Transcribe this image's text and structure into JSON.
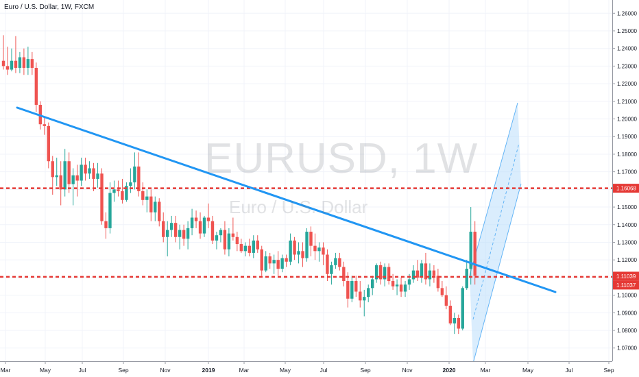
{
  "header": {
    "title": "Euro / U.S. Dollar, 1W, FXCM"
  },
  "watermark": {
    "symbol": "EURUSD, 1W",
    "name": "Euro / U.S. Dollar"
  },
  "colors": {
    "up": "#26a69a",
    "down": "#ef5350",
    "trendline": "#2196f3",
    "level": "#e53935",
    "channel_fill": "#bbdefb",
    "grid": "#f0f3fa",
    "axis_text": "#131722"
  },
  "chart_data": {
    "type": "candlestick",
    "symbol": "EURUSD",
    "timeframe": "1W",
    "source": "FXCM",
    "x_ticks": [
      "Mar",
      "May",
      "Jul",
      "Sep",
      "Nov",
      "2019",
      "Mar",
      "May",
      "Jul",
      "Sep",
      "Nov",
      "2020",
      "Mar",
      "May",
      "Jul",
      "Sep"
    ],
    "y_ticks": [
      "1.26000",
      "1.25000",
      "1.24000",
      "1.23000",
      "1.22000",
      "1.21000",
      "1.20000",
      "1.19000",
      "1.18000",
      "1.17000",
      "1.16000",
      "1.15000",
      "1.14000",
      "1.13000",
      "1.12000",
      "1.11000",
      "1.10000",
      "1.09000",
      "1.08000",
      "1.07000"
    ],
    "ylim": [
      1.0625,
      1.2675
    ],
    "price_labels": [
      "1.16068",
      "1.11039",
      "1.11037"
    ],
    "horizontal_levels": [
      1.16068,
      1.11039
    ],
    "candles": [
      {
        "o": 1.233,
        "h": 1.2475,
        "l": 1.228,
        "c": 1.23
      },
      {
        "o": 1.23,
        "h": 1.241,
        "l": 1.225,
        "c": 1.228
      },
      {
        "o": 1.228,
        "h": 1.24,
        "l": 1.227,
        "c": 1.233
      },
      {
        "o": 1.233,
        "h": 1.247,
        "l": 1.226,
        "c": 1.229
      },
      {
        "o": 1.229,
        "h": 1.238,
        "l": 1.226,
        "c": 1.235
      },
      {
        "o": 1.235,
        "h": 1.24,
        "l": 1.225,
        "c": 1.229
      },
      {
        "o": 1.229,
        "h": 1.241,
        "l": 1.225,
        "c": 1.234
      },
      {
        "o": 1.234,
        "h": 1.238,
        "l": 1.225,
        "c": 1.229
      },
      {
        "o": 1.229,
        "h": 1.232,
        "l": 1.204,
        "c": 1.208
      },
      {
        "o": 1.208,
        "h": 1.21,
        "l": 1.194,
        "c": 1.197
      },
      {
        "o": 1.197,
        "h": 1.201,
        "l": 1.191,
        "c": 1.196
      },
      {
        "o": 1.196,
        "h": 1.198,
        "l": 1.172,
        "c": 1.176
      },
      {
        "o": 1.176,
        "h": 1.179,
        "l": 1.157,
        "c": 1.167
      },
      {
        "o": 1.167,
        "h": 1.178,
        "l": 1.162,
        "c": 1.168
      },
      {
        "o": 1.168,
        "h": 1.176,
        "l": 1.151,
        "c": 1.16
      },
      {
        "o": 1.16,
        "h": 1.183,
        "l": 1.156,
        "c": 1.176
      },
      {
        "o": 1.176,
        "h": 1.181,
        "l": 1.158,
        "c": 1.163
      },
      {
        "o": 1.163,
        "h": 1.172,
        "l": 1.151,
        "c": 1.168
      },
      {
        "o": 1.168,
        "h": 1.174,
        "l": 1.156,
        "c": 1.165
      },
      {
        "o": 1.165,
        "h": 1.178,
        "l": 1.162,
        "c": 1.174
      },
      {
        "o": 1.174,
        "h": 1.178,
        "l": 1.165,
        "c": 1.169
      },
      {
        "o": 1.169,
        "h": 1.176,
        "l": 1.166,
        "c": 1.172
      },
      {
        "o": 1.172,
        "h": 1.175,
        "l": 1.159,
        "c": 1.166
      },
      {
        "o": 1.166,
        "h": 1.175,
        "l": 1.161,
        "c": 1.169
      },
      {
        "o": 1.169,
        "h": 1.172,
        "l": 1.14,
        "c": 1.142
      },
      {
        "o": 1.142,
        "h": 1.147,
        "l": 1.132,
        "c": 1.138
      },
      {
        "o": 1.138,
        "h": 1.164,
        "l": 1.135,
        "c": 1.158
      },
      {
        "o": 1.158,
        "h": 1.165,
        "l": 1.153,
        "c": 1.16
      },
      {
        "o": 1.16,
        "h": 1.165,
        "l": 1.156,
        "c": 1.159
      },
      {
        "o": 1.159,
        "h": 1.166,
        "l": 1.152,
        "c": 1.154
      },
      {
        "o": 1.154,
        "h": 1.164,
        "l": 1.153,
        "c": 1.162
      },
      {
        "o": 1.162,
        "h": 1.172,
        "l": 1.158,
        "c": 1.164
      },
      {
        "o": 1.164,
        "h": 1.181,
        "l": 1.16,
        "c": 1.173
      },
      {
        "o": 1.173,
        "h": 1.181,
        "l": 1.156,
        "c": 1.159
      },
      {
        "o": 1.159,
        "h": 1.164,
        "l": 1.151,
        "c": 1.154
      },
      {
        "o": 1.154,
        "h": 1.16,
        "l": 1.147,
        "c": 1.156
      },
      {
        "o": 1.156,
        "h": 1.16,
        "l": 1.142,
        "c": 1.147
      },
      {
        "o": 1.147,
        "h": 1.156,
        "l": 1.142,
        "c": 1.153
      },
      {
        "o": 1.153,
        "h": 1.155,
        "l": 1.139,
        "c": 1.142
      },
      {
        "o": 1.142,
        "h": 1.147,
        "l": 1.13,
        "c": 1.133
      },
      {
        "o": 1.133,
        "h": 1.142,
        "l": 1.122,
        "c": 1.137
      },
      {
        "o": 1.137,
        "h": 1.145,
        "l": 1.133,
        "c": 1.141
      },
      {
        "o": 1.141,
        "h": 1.145,
        "l": 1.13,
        "c": 1.133
      },
      {
        "o": 1.133,
        "h": 1.14,
        "l": 1.126,
        "c": 1.137
      },
      {
        "o": 1.137,
        "h": 1.14,
        "l": 1.128,
        "c": 1.132
      },
      {
        "o": 1.132,
        "h": 1.142,
        "l": 1.126,
        "c": 1.138
      },
      {
        "o": 1.138,
        "h": 1.149,
        "l": 1.134,
        "c": 1.144
      },
      {
        "o": 1.144,
        "h": 1.148,
        "l": 1.138,
        "c": 1.142
      },
      {
        "o": 1.142,
        "h": 1.147,
        "l": 1.132,
        "c": 1.135
      },
      {
        "o": 1.135,
        "h": 1.145,
        "l": 1.133,
        "c": 1.144
      },
      {
        "o": 1.144,
        "h": 1.152,
        "l": 1.138,
        "c": 1.142
      },
      {
        "o": 1.142,
        "h": 1.145,
        "l": 1.129,
        "c": 1.131
      },
      {
        "o": 1.131,
        "h": 1.136,
        "l": 1.126,
        "c": 1.134
      },
      {
        "o": 1.134,
        "h": 1.138,
        "l": 1.13,
        "c": 1.137
      },
      {
        "o": 1.137,
        "h": 1.142,
        "l": 1.123,
        "c": 1.126
      },
      {
        "o": 1.126,
        "h": 1.138,
        "l": 1.122,
        "c": 1.135
      },
      {
        "o": 1.135,
        "h": 1.144,
        "l": 1.131,
        "c": 1.133
      },
      {
        "o": 1.133,
        "h": 1.136,
        "l": 1.125,
        "c": 1.129
      },
      {
        "o": 1.129,
        "h": 1.132,
        "l": 1.124,
        "c": 1.125
      },
      {
        "o": 1.125,
        "h": 1.13,
        "l": 1.122,
        "c": 1.128
      },
      {
        "o": 1.128,
        "h": 1.132,
        "l": 1.122,
        "c": 1.124
      },
      {
        "o": 1.124,
        "h": 1.134,
        "l": 1.121,
        "c": 1.131
      },
      {
        "o": 1.131,
        "h": 1.134,
        "l": 1.124,
        "c": 1.126
      },
      {
        "o": 1.126,
        "h": 1.128,
        "l": 1.111,
        "c": 1.114
      },
      {
        "o": 1.114,
        "h": 1.125,
        "l": 1.113,
        "c": 1.122
      },
      {
        "o": 1.122,
        "h": 1.124,
        "l": 1.115,
        "c": 1.118
      },
      {
        "o": 1.118,
        "h": 1.123,
        "l": 1.112,
        "c": 1.12
      },
      {
        "o": 1.12,
        "h": 1.125,
        "l": 1.111,
        "c": 1.115
      },
      {
        "o": 1.115,
        "h": 1.123,
        "l": 1.113,
        "c": 1.121
      },
      {
        "o": 1.121,
        "h": 1.123,
        "l": 1.116,
        "c": 1.119
      },
      {
        "o": 1.119,
        "h": 1.135,
        "l": 1.117,
        "c": 1.131
      },
      {
        "o": 1.131,
        "h": 1.133,
        "l": 1.12,
        "c": 1.123
      },
      {
        "o": 1.123,
        "h": 1.13,
        "l": 1.118,
        "c": 1.125
      },
      {
        "o": 1.125,
        "h": 1.13,
        "l": 1.116,
        "c": 1.121
      },
      {
        "o": 1.121,
        "h": 1.138,
        "l": 1.119,
        "c": 1.136
      },
      {
        "o": 1.136,
        "h": 1.139,
        "l": 1.122,
        "c": 1.128
      },
      {
        "o": 1.128,
        "h": 1.135,
        "l": 1.12,
        "c": 1.125
      },
      {
        "o": 1.125,
        "h": 1.13,
        "l": 1.119,
        "c": 1.127
      },
      {
        "o": 1.127,
        "h": 1.13,
        "l": 1.117,
        "c": 1.123
      },
      {
        "o": 1.123,
        "h": 1.126,
        "l": 1.108,
        "c": 1.112
      },
      {
        "o": 1.112,
        "h": 1.119,
        "l": 1.106,
        "c": 1.117
      },
      {
        "o": 1.117,
        "h": 1.124,
        "l": 1.115,
        "c": 1.121
      },
      {
        "o": 1.121,
        "h": 1.124,
        "l": 1.114,
        "c": 1.116
      },
      {
        "o": 1.116,
        "h": 1.119,
        "l": 1.105,
        "c": 1.108
      },
      {
        "o": 1.108,
        "h": 1.113,
        "l": 1.093,
        "c": 1.098
      },
      {
        "o": 1.098,
        "h": 1.111,
        "l": 1.096,
        "c": 1.108
      },
      {
        "o": 1.108,
        "h": 1.111,
        "l": 1.099,
        "c": 1.102
      },
      {
        "o": 1.102,
        "h": 1.108,
        "l": 1.093,
        "c": 1.097
      },
      {
        "o": 1.097,
        "h": 1.103,
        "l": 1.088,
        "c": 1.099
      },
      {
        "o": 1.099,
        "h": 1.106,
        "l": 1.096,
        "c": 1.104
      },
      {
        "o": 1.104,
        "h": 1.111,
        "l": 1.1,
        "c": 1.109
      },
      {
        "o": 1.109,
        "h": 1.118,
        "l": 1.107,
        "c": 1.117
      },
      {
        "o": 1.117,
        "h": 1.119,
        "l": 1.106,
        "c": 1.109
      },
      {
        "o": 1.109,
        "h": 1.118,
        "l": 1.105,
        "c": 1.116
      },
      {
        "o": 1.116,
        "h": 1.118,
        "l": 1.106,
        "c": 1.108
      },
      {
        "o": 1.108,
        "h": 1.112,
        "l": 1.103,
        "c": 1.105
      },
      {
        "o": 1.105,
        "h": 1.109,
        "l": 1.1,
        "c": 1.106
      },
      {
        "o": 1.106,
        "h": 1.11,
        "l": 1.099,
        "c": 1.102
      },
      {
        "o": 1.102,
        "h": 1.108,
        "l": 1.099,
        "c": 1.106
      },
      {
        "o": 1.106,
        "h": 1.112,
        "l": 1.103,
        "c": 1.109
      },
      {
        "o": 1.109,
        "h": 1.117,
        "l": 1.107,
        "c": 1.114
      },
      {
        "o": 1.114,
        "h": 1.12,
        "l": 1.108,
        "c": 1.11
      },
      {
        "o": 1.11,
        "h": 1.12,
        "l": 1.107,
        "c": 1.118
      },
      {
        "o": 1.118,
        "h": 1.124,
        "l": 1.106,
        "c": 1.109
      },
      {
        "o": 1.109,
        "h": 1.118,
        "l": 1.105,
        "c": 1.114
      },
      {
        "o": 1.114,
        "h": 1.117,
        "l": 1.107,
        "c": 1.111
      },
      {
        "o": 1.111,
        "h": 1.115,
        "l": 1.102,
        "c": 1.104
      },
      {
        "o": 1.104,
        "h": 1.108,
        "l": 1.099,
        "c": 1.1
      },
      {
        "o": 1.1,
        "h": 1.105,
        "l": 1.092,
        "c": 1.094
      },
      {
        "o": 1.094,
        "h": 1.097,
        "l": 1.083,
        "c": 1.084
      },
      {
        "o": 1.084,
        "h": 1.09,
        "l": 1.078,
        "c": 1.087
      },
      {
        "o": 1.087,
        "h": 1.089,
        "l": 1.078,
        "c": 1.081
      },
      {
        "o": 1.081,
        "h": 1.105,
        "l": 1.08,
        "c": 1.104
      },
      {
        "o": 1.104,
        "h": 1.12,
        "l": 1.103,
        "c": 1.115
      },
      {
        "o": 1.115,
        "h": 1.15,
        "l": 1.106,
        "c": 1.136
      },
      {
        "o": 1.136,
        "h": 1.142,
        "l": 1.106,
        "c": 1.111
      }
    ]
  }
}
